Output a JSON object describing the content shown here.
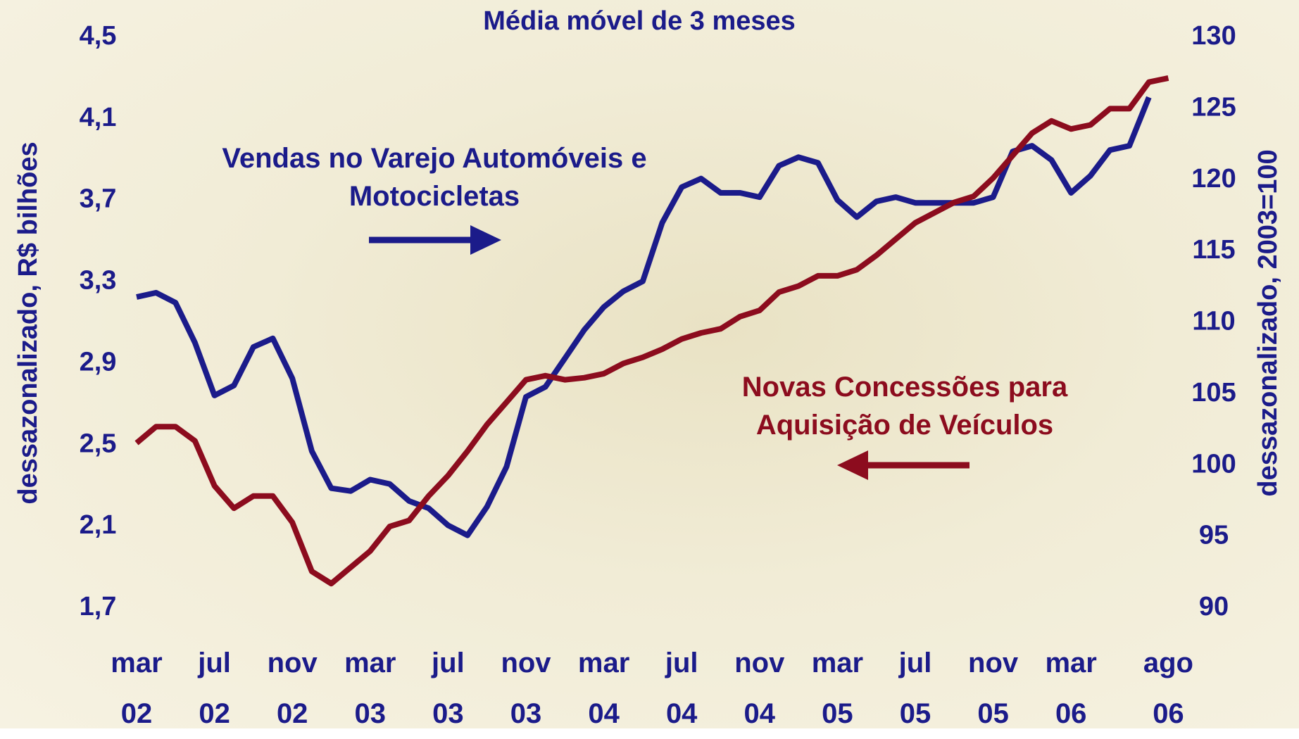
{
  "chart_data": {
    "type": "line",
    "title": "Média móvel de 3 meses",
    "y_label": "dessazonalizado, R$ bilhões",
    "y2_label": "dessazonalizado, 2003=100",
    "categories": [
      "mar 02",
      null,
      null,
      null,
      "jul 02",
      null,
      null,
      null,
      "nov 02",
      null,
      null,
      null,
      "mar 03",
      null,
      null,
      null,
      "jul 03",
      null,
      null,
      null,
      "nov 03",
      null,
      null,
      null,
      "mar 04",
      null,
      null,
      null,
      "jul 04",
      null,
      null,
      null,
      "nov 04",
      null,
      null,
      null,
      "mar 05",
      null,
      null,
      null,
      "jul 05",
      null,
      null,
      null,
      "nov 05",
      null,
      null,
      null,
      "mar 06",
      null,
      null,
      null,
      null,
      "ago 06"
    ],
    "ylim": [
      1.7,
      4.5
    ],
    "yticks": [
      {
        "value": 1.7,
        "label": "1,7"
      },
      {
        "value": 2.1,
        "label": "2,1"
      },
      {
        "value": 2.5,
        "label": "2,5"
      },
      {
        "value": 2.9,
        "label": "2,9"
      },
      {
        "value": 3.3,
        "label": "3,3"
      },
      {
        "value": 3.7,
        "label": "3,7"
      },
      {
        "value": 4.1,
        "label": "4,1"
      },
      {
        "value": 4.5,
        "label": "4,5"
      }
    ],
    "y2lim": [
      90,
      130
    ],
    "y2ticks": [
      90,
      95,
      100,
      105,
      110,
      115,
      120,
      125,
      130
    ],
    "series": [
      {
        "name": "Vendas no Varejo Automóveis e Motocicletas",
        "color": "#1b1b8a",
        "axis": "y2",
        "values": [
          111.8,
          112.1,
          111.4,
          108.6,
          104.9,
          105.6,
          108.3,
          108.9,
          106.1,
          101.0,
          98.4,
          98.2,
          99.0,
          98.7,
          97.5,
          97.0,
          95.8,
          95.1,
          97.1,
          99.9,
          104.8,
          105.5,
          107.5,
          109.5,
          111.1,
          112.2,
          112.9,
          117.0,
          119.5,
          120.1,
          119.1,
          119.1,
          118.8,
          121.0,
          121.6,
          121.2,
          118.6,
          117.4,
          118.5,
          118.8,
          118.4,
          118.4,
          118.4,
          118.4,
          118.8,
          122.0,
          122.4,
          121.4,
          119.1,
          120.3,
          122.1,
          122.4,
          125.8,
          null
        ]
      },
      {
        "name": "Novas Concessões para Aquisição de Veículos",
        "color": "#8c0c1e",
        "axis": "y",
        "values": [
          2.51,
          2.59,
          2.59,
          2.52,
          2.3,
          2.19,
          2.25,
          2.25,
          2.12,
          1.88,
          1.82,
          1.9,
          1.98,
          2.1,
          2.13,
          2.25,
          2.35,
          2.47,
          2.6,
          2.71,
          2.82,
          2.84,
          2.82,
          2.83,
          2.85,
          2.9,
          2.93,
          2.97,
          3.02,
          3.05,
          3.07,
          3.13,
          3.16,
          3.25,
          3.28,
          3.33,
          3.33,
          3.36,
          3.43,
          3.51,
          3.59,
          3.64,
          3.69,
          3.72,
          3.81,
          3.92,
          4.03,
          4.09,
          4.05,
          4.07,
          4.15,
          4.15,
          4.28,
          4.3
        ]
      }
    ]
  }
}
